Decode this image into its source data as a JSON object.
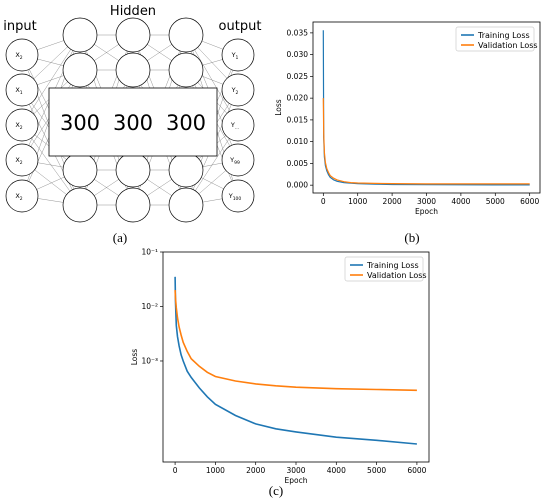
{
  "diagram": {
    "input_title": "input",
    "hidden_title": "Hidden",
    "output_title": "output",
    "hidden_sizes": [
      "300",
      "300",
      "300"
    ],
    "input_nodes": [
      "X2",
      "X1",
      "X2",
      "X2",
      "X2"
    ],
    "output_nodes": [
      "Y1",
      "Y2",
      "Y...",
      "Y99",
      "Y100"
    ]
  },
  "panel_labels": {
    "a": "(a)",
    "b": "(b)",
    "c": "(c)"
  },
  "colors": {
    "training": "#1f77b4",
    "validation": "#ff7f0e"
  },
  "chart_data": [
    {
      "id": "b",
      "type": "line",
      "xlabel": "Epoch",
      "ylabel": "Loss",
      "xlim": [
        -300,
        6300
      ],
      "ylim": [
        -0.0018,
        0.0375
      ],
      "xticks": [
        0,
        1000,
        2000,
        3000,
        4000,
        5000,
        6000
      ],
      "yticks": [
        0.0,
        0.005,
        0.01,
        0.015,
        0.02,
        0.025,
        0.03,
        0.035
      ],
      "ytick_labels": [
        "0.000",
        "0.005",
        "0.010",
        "0.015",
        "0.020",
        "0.025",
        "0.030",
        "0.035"
      ],
      "legend": "top-right",
      "series": [
        {
          "name": "Training Loss",
          "x": [
            0,
            10,
            30,
            60,
            100,
            150,
            200,
            300,
            400,
            600,
            800,
            1000,
            1500,
            2000,
            3000,
            4000,
            5000,
            6000
          ],
          "y": [
            0.0356,
            0.011,
            0.0065,
            0.0045,
            0.0033,
            0.0024,
            0.0018,
            0.0012,
            0.0009,
            0.0006,
            0.00045,
            0.00035,
            0.00022,
            0.00015,
            0.0001,
            8e-05,
            7e-05,
            6e-05
          ]
        },
        {
          "name": "Validation Loss",
          "x": [
            0,
            10,
            30,
            60,
            100,
            150,
            200,
            300,
            400,
            600,
            800,
            1000,
            1500,
            2000,
            3000,
            4000,
            5000,
            6000
          ],
          "y": [
            0.02,
            0.012,
            0.0075,
            0.0052,
            0.0038,
            0.0029,
            0.0022,
            0.0016,
            0.0012,
            0.0008,
            0.0006,
            0.0005,
            0.0004,
            0.00035,
            0.0003,
            0.00029,
            0.00028,
            0.00028
          ]
        }
      ]
    },
    {
      "id": "c",
      "type": "line",
      "scale": "log",
      "xlabel": "Epoch",
      "ylabel": "Loss",
      "xlim": [
        -300,
        6300
      ],
      "ylim": [
        1.4e-05,
        0.1
      ],
      "xticks": [
        0,
        1000,
        2000,
        3000,
        4000,
        5000,
        6000
      ],
      "yticks": [
        0.1,
        0.01,
        0.001
      ],
      "ytick_labels": [
        "10⁻¹",
        "10⁻²",
        "10⁻³"
      ],
      "legend": "top-right",
      "series": [
        {
          "name": "Training Loss",
          "x": [
            0,
            10,
            30,
            60,
            100,
            150,
            200,
            300,
            400,
            600,
            800,
            1000,
            1500,
            2000,
            2500,
            3000,
            4000,
            5000,
            6000
          ],
          "y": [
            0.035,
            0.012,
            0.0045,
            0.0028,
            0.0019,
            0.0013,
            0.001,
            0.00065,
            0.0005,
            0.00032,
            0.00022,
            0.00016,
            0.0001,
            7e-05,
            5.7e-05,
            5e-05,
            4e-05,
            3.5e-05,
            3e-05
          ]
        },
        {
          "name": "Validation Loss",
          "x": [
            0,
            10,
            30,
            60,
            100,
            150,
            200,
            300,
            400,
            600,
            800,
            1000,
            1500,
            2000,
            2500,
            3000,
            4000,
            5000,
            6000
          ],
          "y": [
            0.02,
            0.014,
            0.0095,
            0.0062,
            0.0042,
            0.003,
            0.0022,
            0.0015,
            0.0011,
            0.0008,
            0.00062,
            0.00052,
            0.00043,
            0.00038,
            0.00035,
            0.00033,
            0.00031,
            0.0003,
            0.00029
          ]
        }
      ]
    }
  ]
}
